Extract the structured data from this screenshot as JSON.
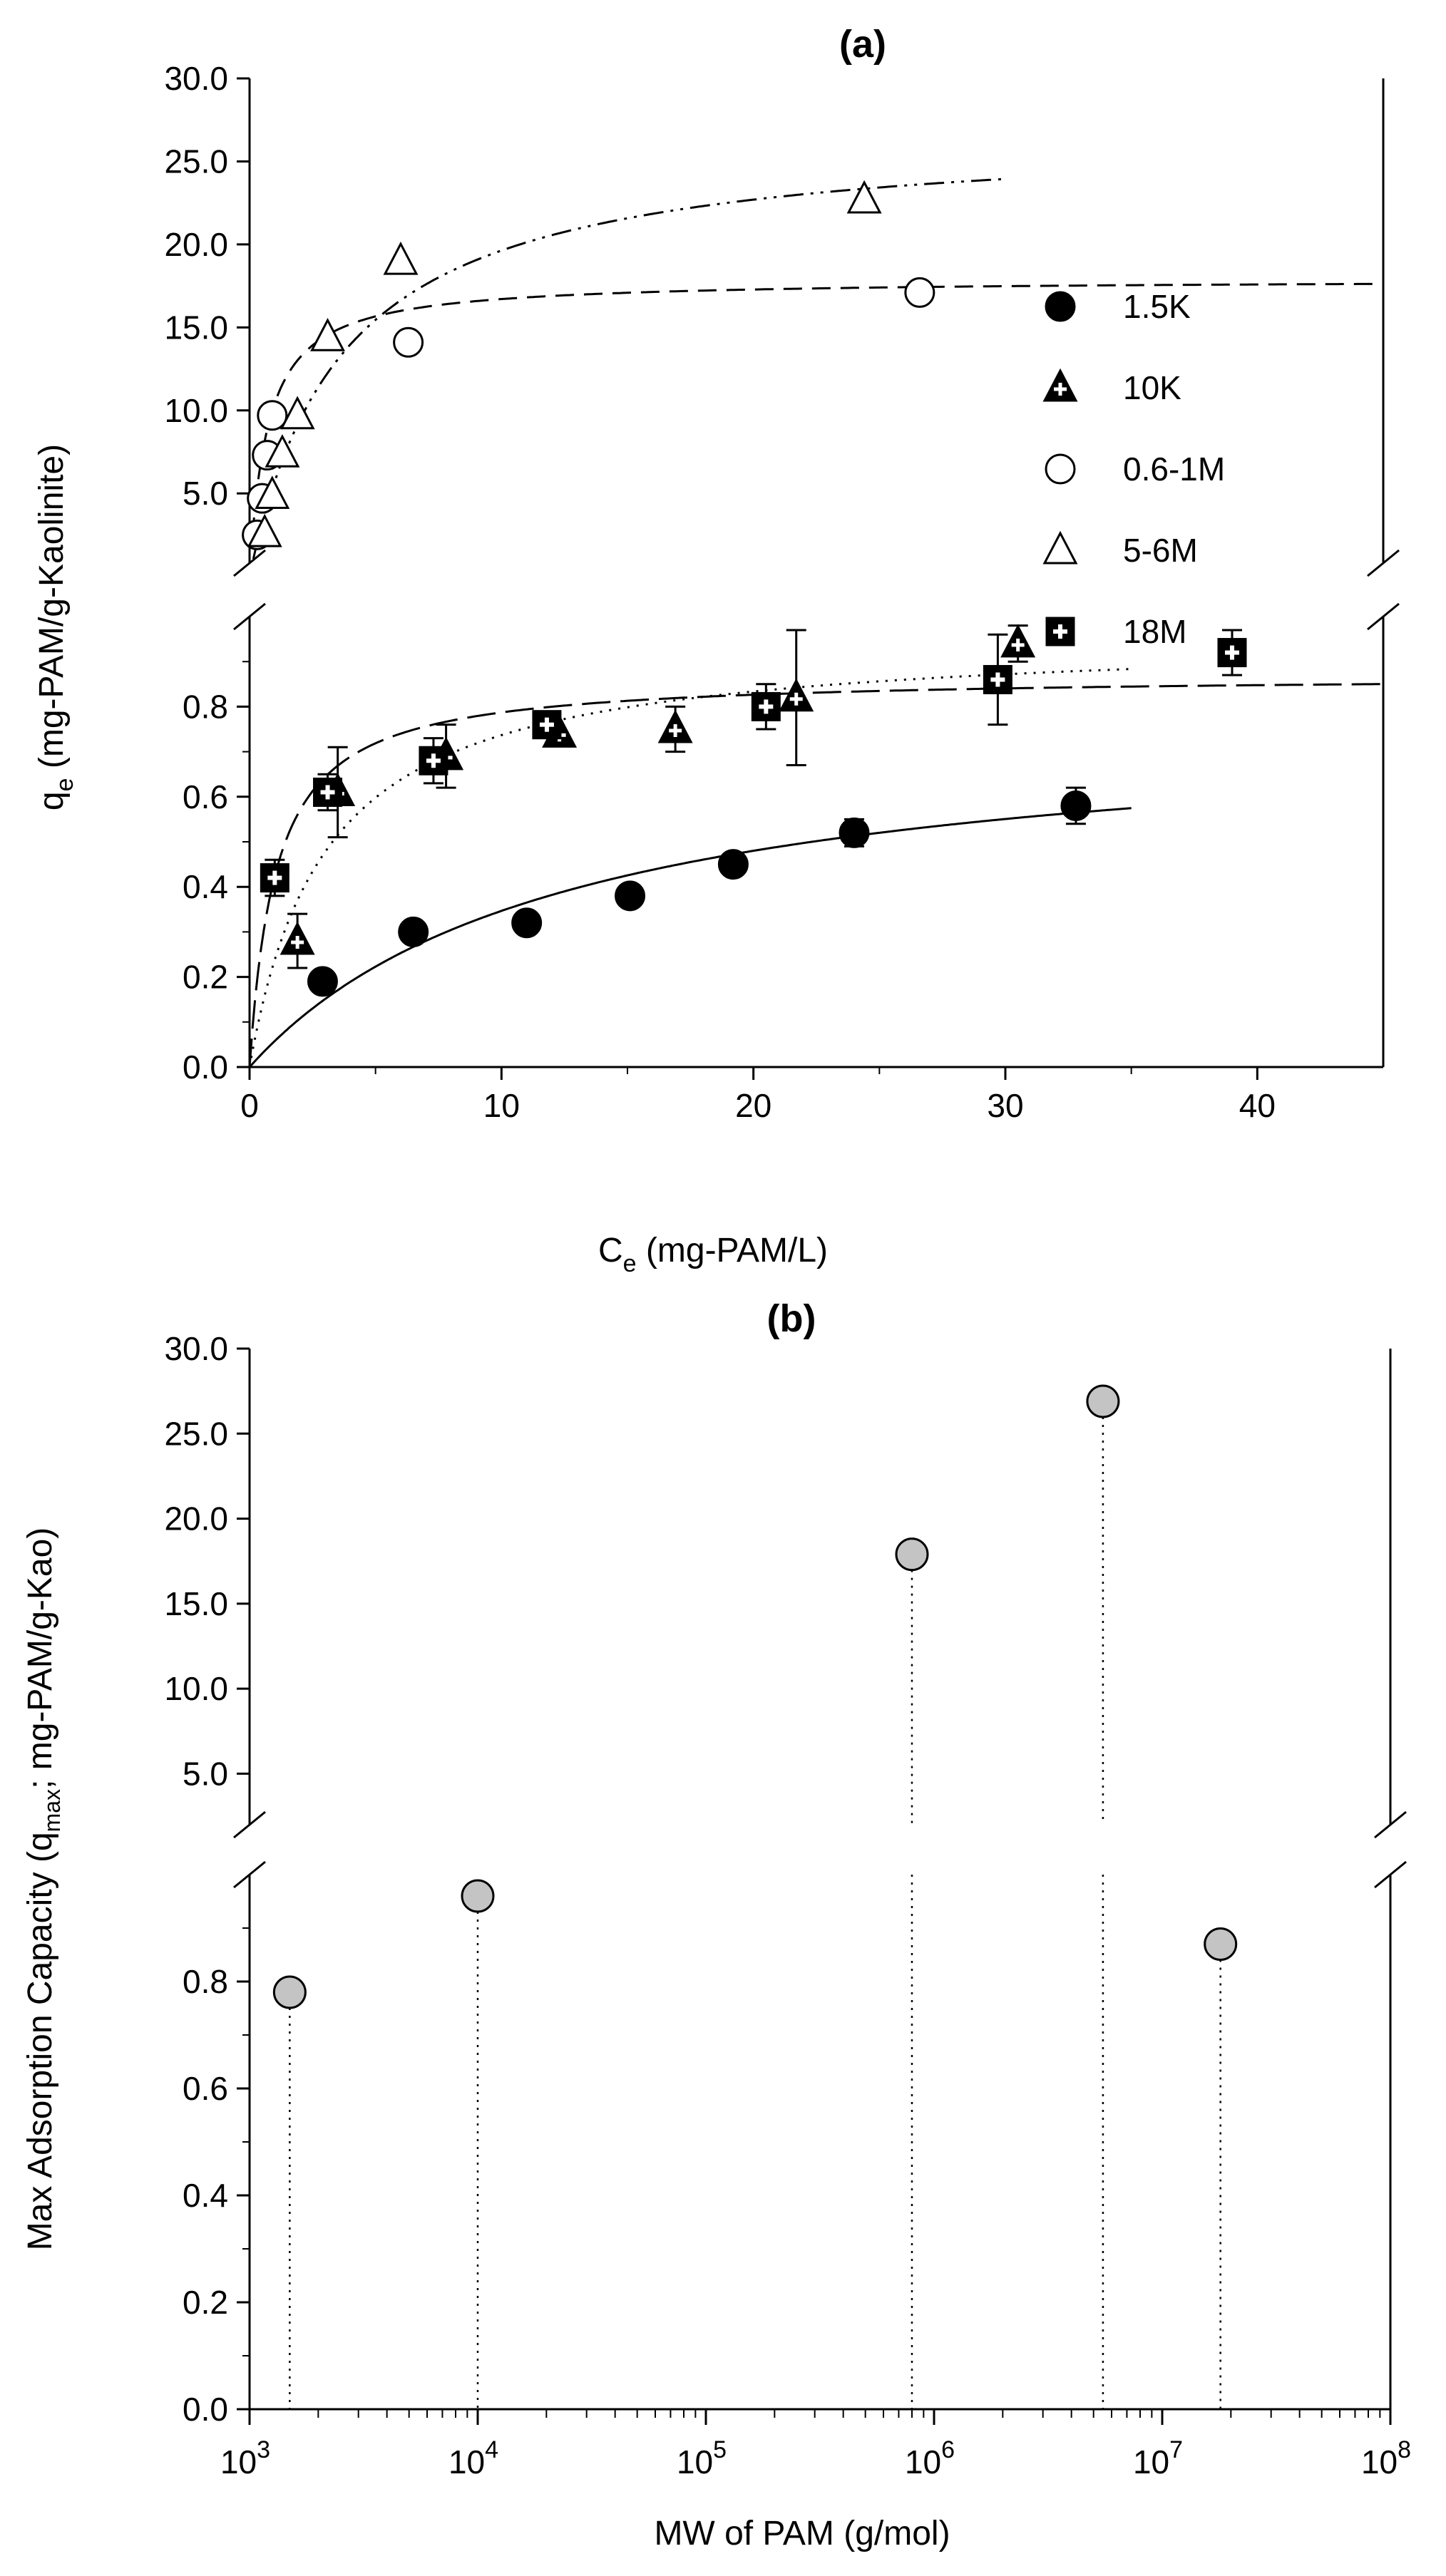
{
  "chart_data": [
    {
      "panel": "a",
      "type": "scatter",
      "title": "(a)",
      "xlabel_main": "C",
      "xlabel_sub": "e",
      "xlabel_rest": " (mg-PAM/L)",
      "ylabel_main": "q",
      "ylabel_sub": "e",
      "ylabel_rest": " (mg-PAM/g-Kaolinite)",
      "xlim": [
        0,
        45
      ],
      "xticks": [
        0,
        10,
        20,
        30,
        40
      ],
      "xtick_labels": [
        "0",
        "10",
        "20",
        "30",
        "40"
      ],
      "ylim_lower": [
        0.0,
        1.0
      ],
      "ylim_upper": [
        0.8,
        30.0
      ],
      "yticks_lower": [
        0.0,
        0.2,
        0.4,
        0.6,
        0.8
      ],
      "ytick_labels_lower": [
        "0.0",
        "0.2",
        "0.4",
        "0.6",
        "0.8"
      ],
      "yticks_upper": [
        5.0,
        10.0,
        15.0,
        20.0,
        25.0,
        30.0
      ],
      "ytick_labels_upper": [
        "5.0",
        "10.0",
        "15.0",
        "20.0",
        "25.0",
        "30.0"
      ],
      "axis_break": true,
      "legend_position": "upper right",
      "series": [
        {
          "name": "1.5K",
          "marker": "filled-circle",
          "x": [
            2.9,
            6.5,
            11.0,
            15.1,
            19.2,
            24.0,
            32.8
          ],
          "y": [
            0.19,
            0.3,
            0.32,
            0.38,
            0.45,
            0.52,
            0.58
          ],
          "err": [
            0,
            0.02,
            0.02,
            0,
            0.02,
            0.03,
            0.04
          ],
          "fit": {
            "style": "solid",
            "qmax": 0.78,
            "K": 0.08,
            "xrange": [
              0,
              35
            ]
          }
        },
        {
          "name": "10K",
          "marker": "triangle-plus",
          "x": [
            1.9,
            3.5,
            7.8,
            12.3,
            16.9,
            21.7,
            30.5
          ],
          "y": [
            0.28,
            0.61,
            0.69,
            0.74,
            0.75,
            0.82,
            0.94
          ],
          "err": [
            0.06,
            0.1,
            0.07,
            0,
            0.05,
            0.15,
            0.04
          ],
          "fit": {
            "style": "dotted",
            "qmax": 0.96,
            "K": 0.33,
            "xrange": [
              0,
              35
            ]
          }
        },
        {
          "name": "0.6-1M",
          "marker": "open-circle",
          "x": [
            0.3,
            0.5,
            0.7,
            0.9,
            6.3,
            26.6
          ],
          "y": [
            2.5,
            4.7,
            7.3,
            9.7,
            14.1,
            17.1
          ],
          "err": [
            0,
            0,
            0,
            0,
            0,
            0
          ],
          "fit": {
            "style": "dashed",
            "qmax": 17.9,
            "K": 1.4,
            "xrange": [
              0,
              45
            ]
          }
        },
        {
          "name": "5-6M",
          "marker": "open-triangle",
          "x": [
            0.6,
            0.9,
            1.3,
            1.9,
            3.1,
            6.0,
            24.4
          ],
          "y": [
            2.6,
            4.9,
            7.4,
            9.7,
            14.4,
            19.0,
            22.7
          ],
          "err": [
            0,
            0,
            0,
            0,
            0,
            0,
            0
          ],
          "fit": {
            "style": "dash-dot-dot",
            "qmax": 26.9,
            "K": 0.27,
            "xrange": [
              0,
              30
            ]
          }
        },
        {
          "name": "18M",
          "marker": "square-plus",
          "x": [
            1.0,
            3.1,
            7.3,
            11.8,
            20.5,
            29.7,
            39.0
          ],
          "y": [
            0.42,
            0.61,
            0.68,
            0.76,
            0.8,
            0.86,
            0.92
          ],
          "err": [
            0.04,
            0.04,
            0.05,
            0.02,
            0.05,
            0.1,
            0.05
          ],
          "fit": {
            "style": "long-dash",
            "qmax": 0.87,
            "K": 0.95,
            "xrange": [
              0,
              45
            ]
          }
        }
      ]
    },
    {
      "panel": "b",
      "type": "scatter",
      "title": "(b)",
      "ylabel_main": "Max Adsorption Capacity (q",
      "ylabel_sub": "max",
      "ylabel_rest": "; mg-PAM/g-Kao)",
      "xlabel": "MW of PAM (g/mol)",
      "xscale": "log",
      "xlim": [
        1000,
        100000000
      ],
      "xtick_base": "10",
      "xtick_exponents": [
        "3",
        "4",
        "5",
        "6",
        "7",
        "8"
      ],
      "ylim_lower": [
        0.0,
        1.0
      ],
      "ylim_upper": [
        1.0,
        30.0
      ],
      "yticks_lower": [
        0.0,
        0.2,
        0.4,
        0.6,
        0.8
      ],
      "ytick_labels_lower": [
        "0.0",
        "0.2",
        "0.4",
        "0.6",
        "0.8"
      ],
      "yticks_upper": [
        5.0,
        10.0,
        15.0,
        20.0,
        25.0,
        30.0
      ],
      "ytick_labels_upper": [
        "5.0",
        "10.0",
        "15.0",
        "20.0",
        "25.0",
        "30.0"
      ],
      "axis_break": true,
      "series": [
        {
          "name": "q_max",
          "marker": "gray-circle",
          "x": [
            1500,
            10000,
            800000,
            5500000,
            18000000
          ],
          "y": [
            0.78,
            0.96,
            17.9,
            26.9,
            0.87
          ],
          "drop_lines": true
        }
      ]
    }
  ],
  "colors": {
    "axis": "#000000",
    "marker_fill_gray": "#c4c4c4",
    "marker_fill_black": "#000000",
    "marker_fill_white": "#ffffff"
  }
}
